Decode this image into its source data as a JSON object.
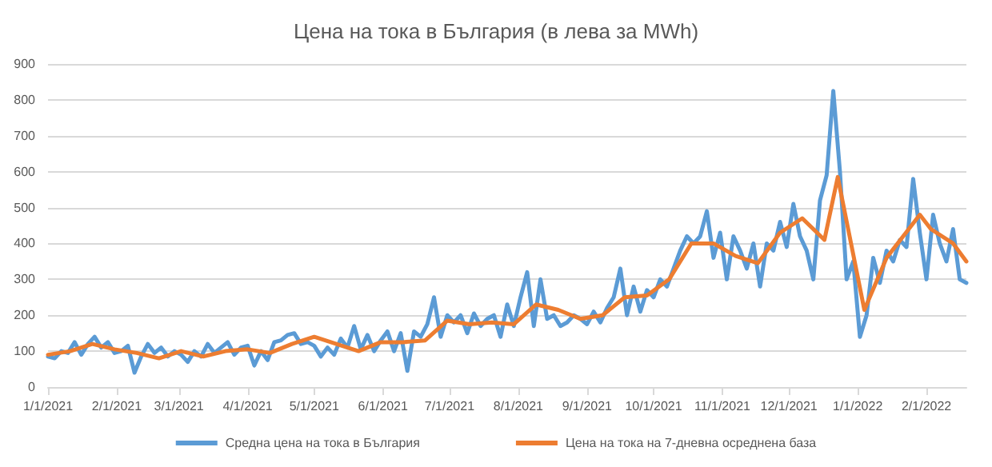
{
  "chart_data": {
    "type": "line",
    "title": "Цена на тока в България (в лева за MWh)",
    "x": [
      "2021-01-01",
      "2021-01-04",
      "2021-01-07",
      "2021-01-10",
      "2021-01-13",
      "2021-01-16",
      "2021-01-19",
      "2021-01-22",
      "2021-01-25",
      "2021-01-28",
      "2021-01-31",
      "2021-02-03",
      "2021-02-06",
      "2021-02-09",
      "2021-02-12",
      "2021-02-15",
      "2021-02-18",
      "2021-02-21",
      "2021-02-24",
      "2021-02-27",
      "2021-03-02",
      "2021-03-05",
      "2021-03-08",
      "2021-03-11",
      "2021-03-14",
      "2021-03-17",
      "2021-03-20",
      "2021-03-23",
      "2021-03-26",
      "2021-03-29",
      "2021-04-01",
      "2021-04-04",
      "2021-04-07",
      "2021-04-10",
      "2021-04-13",
      "2021-04-16",
      "2021-04-19",
      "2021-04-22",
      "2021-04-25",
      "2021-04-28",
      "2021-05-01",
      "2021-05-04",
      "2021-05-07",
      "2021-05-10",
      "2021-05-13",
      "2021-05-16",
      "2021-05-19",
      "2021-05-22",
      "2021-05-25",
      "2021-05-28",
      "2021-05-31",
      "2021-06-03",
      "2021-06-06",
      "2021-06-09",
      "2021-06-12",
      "2021-06-15",
      "2021-06-18",
      "2021-06-21",
      "2021-06-24",
      "2021-06-27",
      "2021-06-30",
      "2021-07-03",
      "2021-07-06",
      "2021-07-09",
      "2021-07-12",
      "2021-07-15",
      "2021-07-18",
      "2021-07-21",
      "2021-07-24",
      "2021-07-27",
      "2021-07-30",
      "2021-08-02",
      "2021-08-05",
      "2021-08-08",
      "2021-08-11",
      "2021-08-14",
      "2021-08-17",
      "2021-08-20",
      "2021-08-23",
      "2021-08-26",
      "2021-08-29",
      "2021-09-01",
      "2021-09-04",
      "2021-09-07",
      "2021-09-10",
      "2021-09-13",
      "2021-09-16",
      "2021-09-19",
      "2021-09-22",
      "2021-09-25",
      "2021-09-28",
      "2021-10-01",
      "2021-10-04",
      "2021-10-07",
      "2021-10-10",
      "2021-10-13",
      "2021-10-16",
      "2021-10-19",
      "2021-10-22",
      "2021-10-25",
      "2021-10-28",
      "2021-10-31",
      "2021-11-03",
      "2021-11-06",
      "2021-11-09",
      "2021-11-12",
      "2021-11-15",
      "2021-11-18",
      "2021-11-21",
      "2021-11-24",
      "2021-11-27",
      "2021-11-30",
      "2021-12-03",
      "2021-12-06",
      "2021-12-09",
      "2021-12-12",
      "2021-12-15",
      "2021-12-18",
      "2021-12-21",
      "2021-12-24",
      "2021-12-27",
      "2021-12-30",
      "2022-01-02",
      "2022-01-05",
      "2022-01-08",
      "2022-01-11",
      "2022-01-14",
      "2022-01-17",
      "2022-01-20",
      "2022-01-23",
      "2022-01-26",
      "2022-01-29",
      "2022-02-01",
      "2022-02-04",
      "2022-02-07",
      "2022-02-10",
      "2022-02-13",
      "2022-02-16",
      "2022-02-19"
    ],
    "series": [
      {
        "name": "Средна цена на тока в България",
        "color": "#5b9bd5",
        "values": [
          85,
          80,
          100,
          95,
          125,
          90,
          120,
          140,
          110,
          125,
          95,
          100,
          115,
          40,
          85,
          120,
          95,
          110,
          85,
          100,
          90,
          70,
          100,
          85,
          120,
          95,
          110,
          125,
          90,
          110,
          115,
          60,
          100,
          75,
          125,
          130,
          145,
          150,
          120,
          125,
          115,
          85,
          110,
          90,
          135,
          110,
          170,
          105,
          145,
          100,
          130,
          155,
          100,
          150,
          45,
          155,
          140,
          175,
          250,
          140,
          200,
          180,
          200,
          150,
          205,
          170,
          190,
          200,
          140,
          230,
          170,
          250,
          320,
          170,
          300,
          190,
          200,
          170,
          180,
          200,
          190,
          175,
          210,
          180,
          220,
          250,
          330,
          200,
          280,
          210,
          270,
          250,
          300,
          280,
          330,
          380,
          420,
          400,
          420,
          490,
          360,
          430,
          300,
          420,
          380,
          330,
          400,
          280,
          400,
          380,
          460,
          390,
          510,
          420,
          380,
          300,
          520,
          590,
          825,
          600,
          300,
          350,
          140,
          200,
          360,
          290,
          380,
          350,
          410,
          390,
          580,
          430,
          300,
          480,
          400,
          350,
          440,
          300,
          290
        ]
      },
      {
        "name": "Цена на тока на 7-дневна осреднена база",
        "color": "#ed7d31",
        "x": [
          "2021-01-01",
          "2021-01-11",
          "2021-01-21",
          "2021-01-31",
          "2021-02-10",
          "2021-02-20",
          "2021-03-02",
          "2021-03-12",
          "2021-03-22",
          "2021-04-01",
          "2021-04-11",
          "2021-04-21",
          "2021-05-01",
          "2021-05-11",
          "2021-05-21",
          "2021-05-31",
          "2021-06-10",
          "2021-06-20",
          "2021-06-30",
          "2021-07-10",
          "2021-07-20",
          "2021-07-30",
          "2021-08-09",
          "2021-08-19",
          "2021-08-29",
          "2021-09-08",
          "2021-09-18",
          "2021-09-28",
          "2021-10-08",
          "2021-10-18",
          "2021-10-28",
          "2021-11-07",
          "2021-11-17",
          "2021-11-27",
          "2021-12-07",
          "2021-12-17",
          "2021-12-23",
          "2021-12-29",
          "2022-01-04",
          "2022-01-14",
          "2022-01-24",
          "2022-01-29",
          "2022-02-03",
          "2022-02-13",
          "2022-02-19"
        ],
        "values": [
          90,
          100,
          120,
          105,
          95,
          80,
          100,
          85,
          100,
          105,
          95,
          120,
          140,
          120,
          100,
          125,
          125,
          130,
          185,
          175,
          180,
          175,
          230,
          215,
          190,
          200,
          250,
          255,
          300,
          400,
          400,
          365,
          345,
          430,
          470,
          410,
          585,
          400,
          215,
          360,
          440,
          480,
          440,
          400,
          350
        ]
      }
    ],
    "xlim": [
      "2021-01-01",
      "2022-02-19"
    ],
    "xticks": [
      {
        "value": "2021-01-01",
        "label": "1/1/2021"
      },
      {
        "value": "2021-02-01",
        "label": "2/1/2021"
      },
      {
        "value": "2021-03-01",
        "label": "3/1/2021"
      },
      {
        "value": "2021-04-01",
        "label": "4/1/2021"
      },
      {
        "value": "2021-05-01",
        "label": "5/1/2021"
      },
      {
        "value": "2021-06-01",
        "label": "6/1/2021"
      },
      {
        "value": "2021-07-01",
        "label": "7/1/2021"
      },
      {
        "value": "2021-08-01",
        "label": "8/1/2021"
      },
      {
        "value": "2021-09-01",
        "label": "9/1/2021"
      },
      {
        "value": "2021-10-01",
        "label": "10/1/2021"
      },
      {
        "value": "2021-11-01",
        "label": "11/1/2021"
      },
      {
        "value": "2021-12-01",
        "label": "12/1/2021"
      },
      {
        "value": "2022-01-01",
        "label": "1/1/2022"
      },
      {
        "value": "2022-02-01",
        "label": "2/1/2022"
      }
    ],
    "ylim": [
      0,
      900
    ],
    "yticks": [
      0,
      100,
      200,
      300,
      400,
      500,
      600,
      700,
      800,
      900
    ],
    "grid": "y",
    "legend": "bottom",
    "marker": "none",
    "line_style": "solid"
  }
}
